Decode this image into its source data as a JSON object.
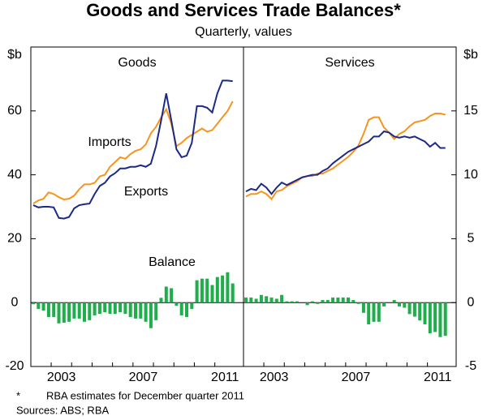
{
  "title": "Goods and Services Trade Balances*",
  "subtitle": "Quarterly, values",
  "footnote": {
    "marker": "*",
    "text": "RBA estimates for December quarter 2011"
  },
  "sources": "Sources: ABS; RBA",
  "chart_data": [
    {
      "type": "combo",
      "title": "Goods",
      "axis_side": "left",
      "ylabel": "$b",
      "ylim": [
        -20,
        80
      ],
      "yticks": [
        -20,
        0,
        20,
        40,
        60
      ],
      "categories": [
        null,
        null,
        null,
        null,
        null,
        "2003",
        null,
        null,
        null,
        null,
        null,
        null,
        null,
        null,
        null,
        null,
        null,
        null,
        null,
        null,
        null,
        "2007",
        null,
        null,
        null,
        null,
        null,
        null,
        null,
        null,
        null,
        null,
        null,
        null,
        null,
        null,
        null,
        "2011",
        null,
        null
      ],
      "series": [
        {
          "name": "Imports",
          "mark": "line",
          "color": "#f7941d",
          "values": [
            31,
            32,
            32.5,
            34.5,
            34,
            33,
            32.3,
            32.5,
            33.5,
            35.5,
            37,
            37,
            37.5,
            39.5,
            40,
            42.5,
            44,
            45.5,
            45,
            46.5,
            47.5,
            48,
            49.5,
            53,
            55,
            58,
            60.5,
            56,
            49,
            50,
            51.5,
            52.5,
            53.5,
            54.5,
            53.5,
            54,
            56,
            58,
            60,
            63
          ]
        },
        {
          "name": "Exports",
          "mark": "line",
          "color": "#1c2a86",
          "values": [
            30.5,
            29.8,
            30,
            30,
            29.8,
            26.5,
            26.3,
            26.8,
            29.5,
            30.5,
            30.8,
            31,
            34,
            36.5,
            37.5,
            39.5,
            40.5,
            42,
            42,
            42.5,
            42.5,
            43,
            42.5,
            43.5,
            49,
            57,
            65.5,
            57,
            48,
            45.5,
            46,
            50,
            61.5,
            61.5,
            61,
            59.5,
            65.5,
            69.5,
            69.5,
            69.3
          ]
        },
        {
          "name": "Balance",
          "mark": "bar",
          "color": "#1fae4b",
          "values": [
            -0.5,
            -2,
            -2.5,
            -4.5,
            -4.5,
            -6.5,
            -6.3,
            -6,
            -5,
            -5,
            -6,
            -5.5,
            -4,
            -3.5,
            -3,
            -3.5,
            -3.5,
            -3,
            -3.5,
            -4.5,
            -5,
            -5,
            -6,
            -8,
            -5.5,
            1.5,
            5,
            4.5,
            -1,
            -4,
            -4.5,
            -2,
            7,
            7.5,
            7.5,
            5.5,
            8,
            8.5,
            9.5,
            6
          ]
        }
      ]
    },
    {
      "type": "combo",
      "title": "Services",
      "axis_side": "right",
      "ylabel": "$b",
      "ylim": [
        -5,
        20
      ],
      "yticks": [
        -5,
        0,
        5,
        10,
        15
      ],
      "categories": [
        null,
        null,
        null,
        null,
        null,
        "2003",
        null,
        null,
        null,
        null,
        null,
        null,
        null,
        null,
        null,
        null,
        null,
        null,
        null,
        null,
        null,
        "2007",
        null,
        null,
        null,
        null,
        null,
        null,
        null,
        null,
        null,
        null,
        null,
        null,
        null,
        null,
        null,
        "2011",
        null,
        null
      ],
      "series": [
        {
          "mark": "line",
          "color": "#f7941d",
          "values": [
            8.3,
            8.5,
            8.5,
            8.7,
            8.5,
            8.1,
            8.7,
            8.8,
            9.1,
            9.3,
            9.5,
            9.8,
            9.9,
            9.9,
            10.1,
            10.1,
            10.3,
            10.5,
            10.8,
            11.1,
            11.4,
            11.8,
            12.3,
            13.2,
            14.3,
            14.5,
            14.5,
            13.7,
            13.3,
            12.8,
            13.2,
            13.4,
            13.8,
            14.1,
            14.2,
            14.3,
            14.6,
            14.8,
            14.8,
            14.7
          ]
        },
        {
          "mark": "line",
          "color": "#1c2a86",
          "values": [
            8.7,
            8.9,
            8.8,
            9.3,
            9,
            8.5,
            9,
            9.4,
            9.2,
            9.4,
            9.6,
            9.8,
            9.9,
            10,
            10,
            10.3,
            10.5,
            10.9,
            11.2,
            11.5,
            11.8,
            12,
            12.2,
            12.4,
            12.6,
            13,
            13,
            13.4,
            13.3,
            13,
            12.9,
            13,
            12.9,
            13,
            12.8,
            12.6,
            12.2,
            12.5,
            12.1,
            12.1
          ]
        },
        {
          "mark": "bar",
          "color": "#1fae4b",
          "values": [
            0.4,
            0.4,
            0.3,
            0.6,
            0.5,
            0.4,
            0.3,
            0.6,
            0.1,
            0.1,
            0.1,
            0,
            -0.2,
            0.1,
            -0.1,
            0.2,
            0.2,
            0.4,
            0.4,
            0.4,
            0.4,
            0.2,
            -0.1,
            -0.8,
            -1.7,
            -1.5,
            -1.5,
            -0.3,
            0,
            0.2,
            -0.3,
            -0.4,
            -0.9,
            -1.1,
            -1.4,
            -1.7,
            -2.4,
            -2.3,
            -2.7,
            -2.6
          ]
        }
      ]
    }
  ]
}
